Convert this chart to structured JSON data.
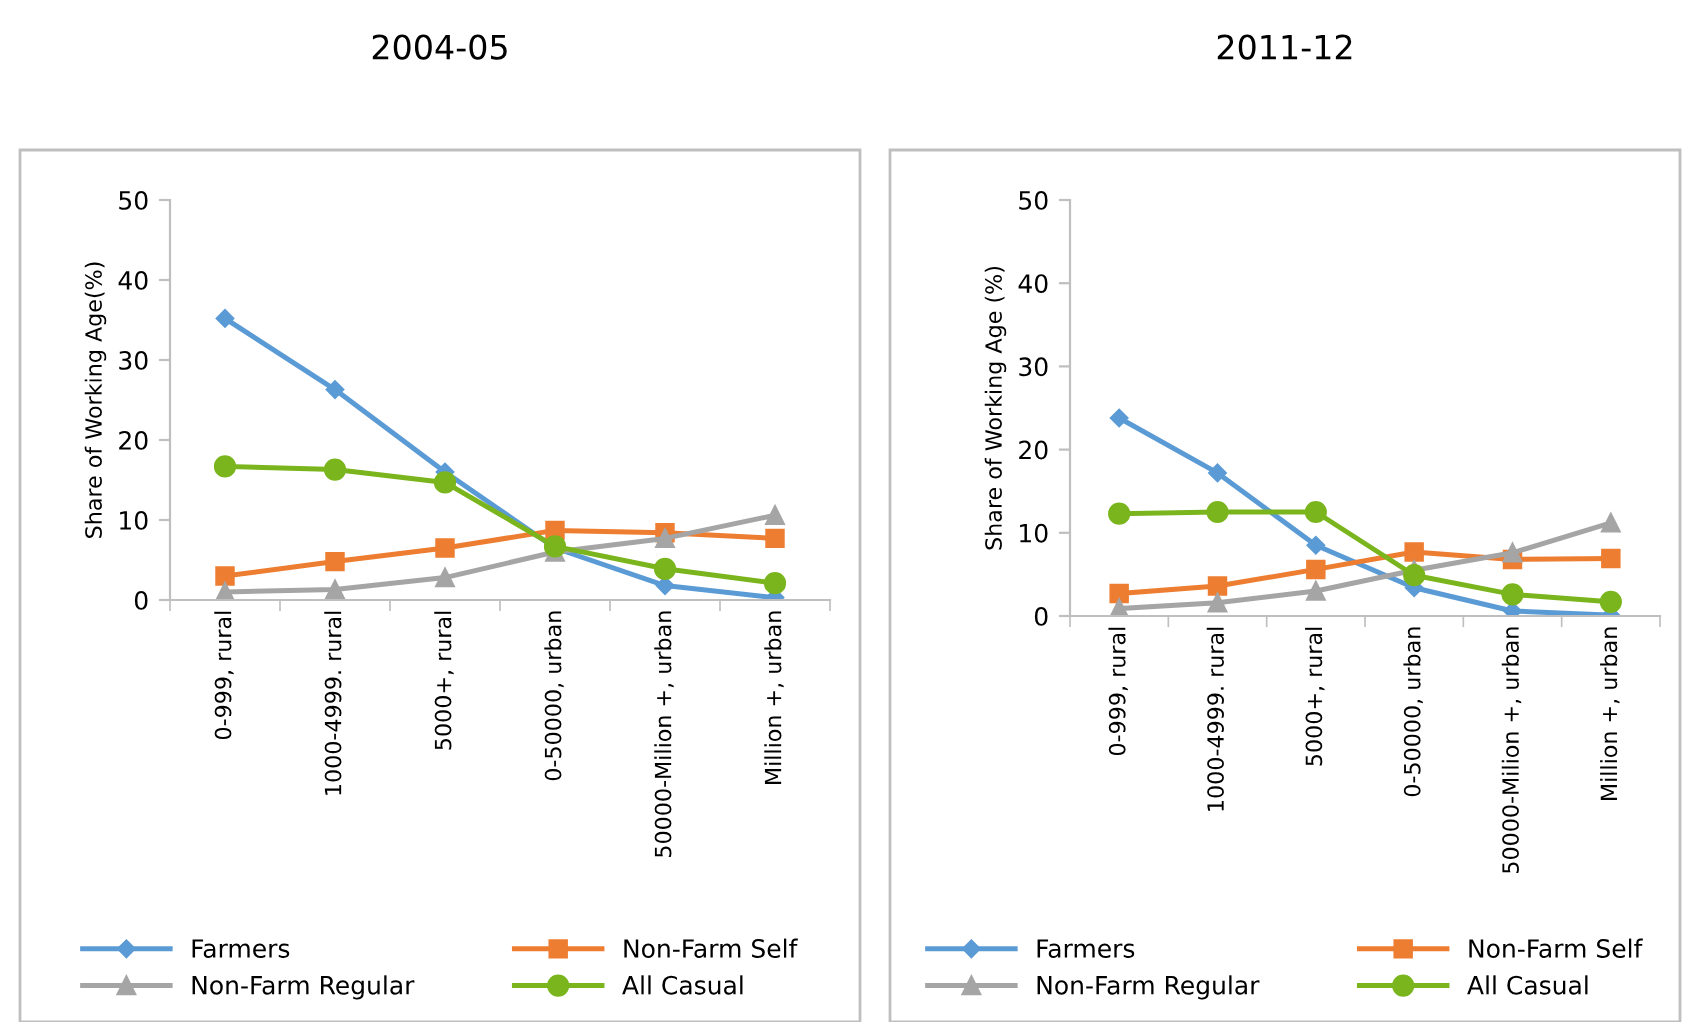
{
  "chart_data": [
    {
      "type": "line",
      "title": "2004-05",
      "ylabel": "Share of Working Age(%)",
      "categories": [
        "0-999, rural",
        "1000-4999. rural",
        "5000+, rural",
        "0-50000, urban",
        "50000-Milion +, urban",
        "Million +, urban"
      ],
      "ylim": [
        0,
        50
      ],
      "yticks": [
        0,
        10,
        20,
        30,
        40,
        50
      ],
      "grid": false,
      "legend": "bottom",
      "series": [
        {
          "name": "Farmers",
          "color": "#5b9bd5",
          "marker": "diamond",
          "values": [
            35.2,
            26.3,
            16,
            6.5,
            1.8,
            0.3
          ]
        },
        {
          "name": "Non-Farm Self",
          "color": "#ed7d31",
          "marker": "square",
          "values": [
            3,
            4.8,
            6.5,
            8.7,
            8.4,
            7.7
          ]
        },
        {
          "name": "Non-Farm Regular",
          "color": "#a5a5a5",
          "marker": "triangle",
          "values": [
            1,
            1.3,
            2.8,
            6,
            7.7,
            10.6
          ]
        },
        {
          "name": "All Casual",
          "color": "#7ab51d",
          "marker": "circle",
          "values": [
            16.7,
            16.3,
            14.7,
            6.7,
            3.9,
            2.1
          ]
        }
      ]
    },
    {
      "type": "line",
      "title": "2011-12",
      "ylabel": "Share of Working Age (%)",
      "categories": [
        "0-999, rural",
        "1000-4999. rural",
        "5000+, rural",
        "0-50000, urban",
        "50000-Milion +, urban",
        "Million +, urban"
      ],
      "ylim": [
        0,
        50
      ],
      "yticks": [
        0,
        10,
        20,
        30,
        40,
        50
      ],
      "grid": false,
      "legend": "bottom",
      "series": [
        {
          "name": "Farmers",
          "color": "#5b9bd5",
          "marker": "diamond",
          "values": [
            23.8,
            17.2,
            8.5,
            3.4,
            0.6,
            0.1
          ]
        },
        {
          "name": "Non-Farm Self",
          "color": "#ed7d31",
          "marker": "square",
          "values": [
            2.7,
            3.6,
            5.6,
            7.7,
            6.8,
            6.9
          ]
        },
        {
          "name": "Non-Farm Regular",
          "color": "#a5a5a5",
          "marker": "triangle",
          "values": [
            0.9,
            1.6,
            3,
            5.5,
            7.6,
            11.2
          ]
        },
        {
          "name": "All Casual",
          "color": "#7ab51d",
          "marker": "circle",
          "values": [
            12.3,
            12.5,
            12.5,
            4.9,
            2.6,
            1.7
          ]
        }
      ]
    }
  ]
}
